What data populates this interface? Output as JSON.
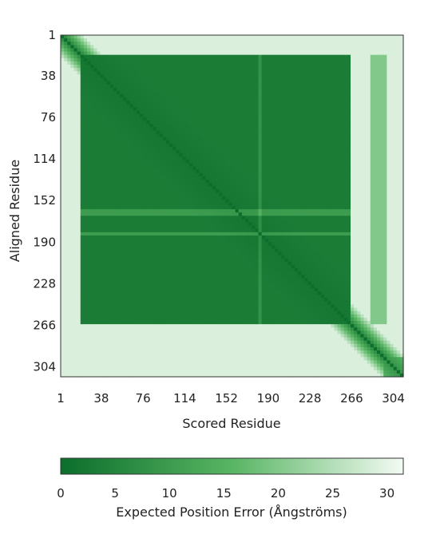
{
  "chart_data": {
    "type": "heatmap",
    "xlabel": "Scored Residue",
    "ylabel": "Aligned Residue",
    "x_ticks": [
      "1",
      "38",
      "76",
      "114",
      "152",
      "190",
      "228",
      "266",
      "304"
    ],
    "y_ticks": [
      "1",
      "38",
      "76",
      "114",
      "152",
      "190",
      "228",
      "266",
      "304"
    ],
    "n_residues": 313,
    "x_range": [
      1,
      313
    ],
    "y_range": [
      1,
      313
    ],
    "matrix_model": {
      "description_note": "",
      "low_error_block_residues": [
        18,
        266
      ],
      "diagonal_error": 0,
      "block_error": 2,
      "background_error": 29,
      "lighter_stripe_rows": [
        [
          160,
          166
        ],
        [
          180,
          184
        ]
      ],
      "lighter_stripe_cols": [
        [
          181,
          183
        ]
      ],
      "semi_block_cols_residues": [
        283,
        298
      ],
      "semi_block_error": 20,
      "c_terminal_block_residues": [
        296,
        313
      ],
      "c_terminal_block_error": 8
    },
    "colorbar": {
      "label": "Expected Position Error (Ångströms)",
      "ticks": [
        "0",
        "5",
        "10",
        "15",
        "20",
        "25",
        "30"
      ],
      "range": [
        0,
        31.5
      ],
      "color_low": "#0b6e2b",
      "color_high": "#f3fbf3"
    }
  }
}
